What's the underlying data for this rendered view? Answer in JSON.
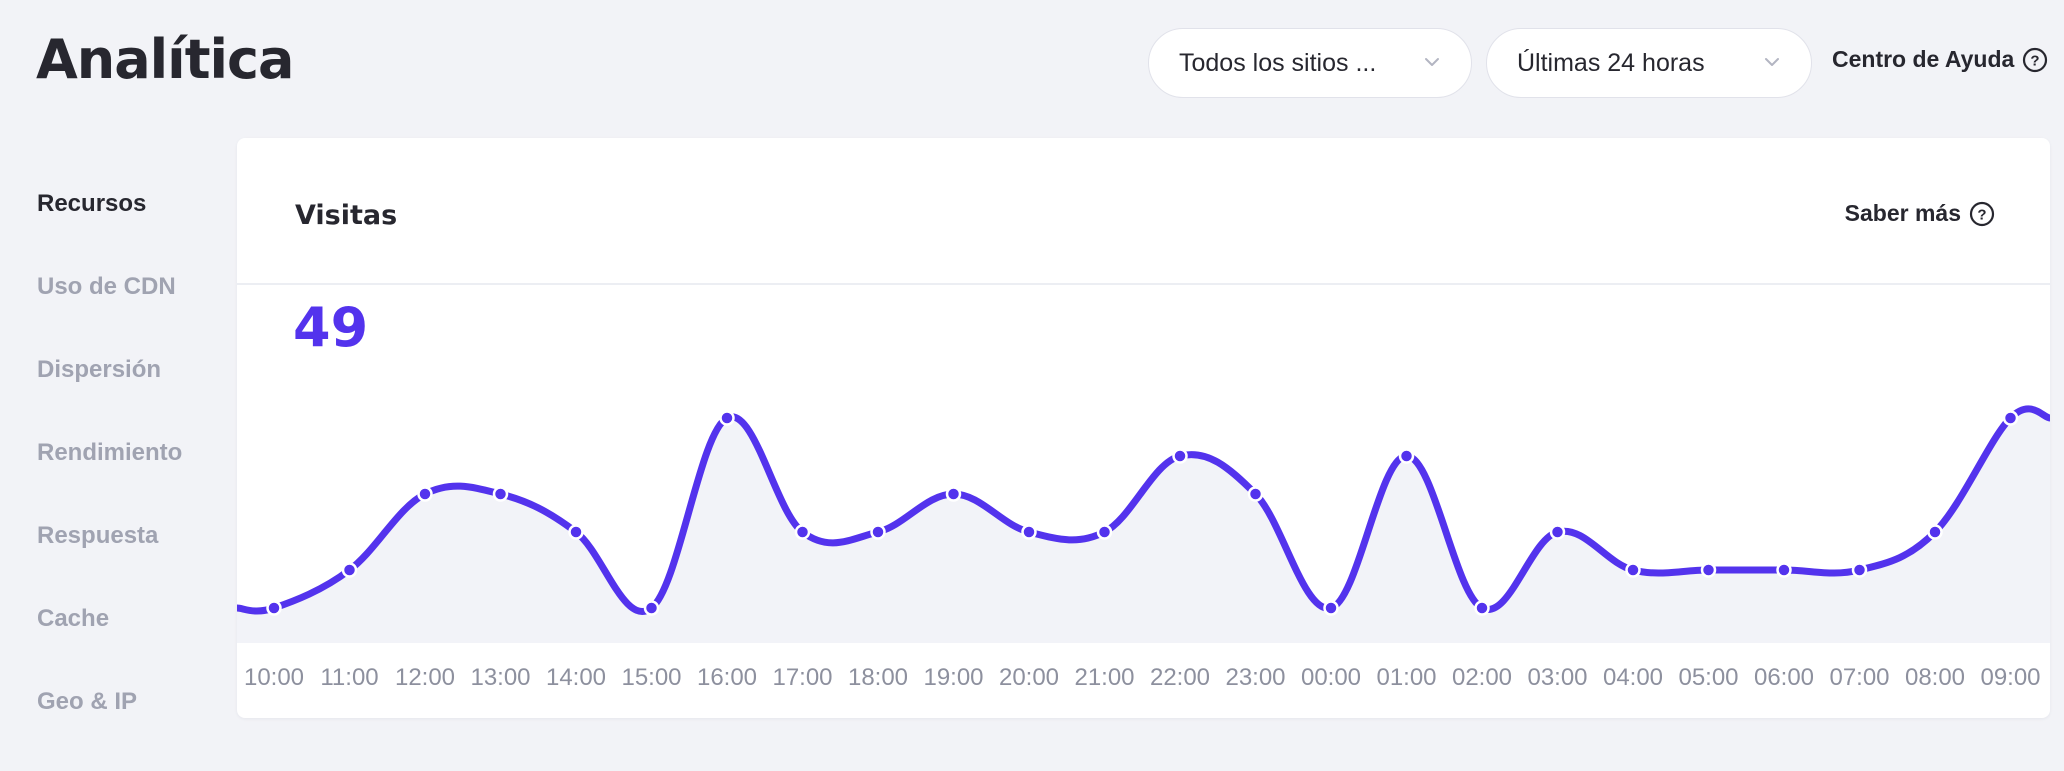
{
  "page": {
    "title": "Analítica",
    "help_label": "Centro de Ayuda",
    "help_icon": "question-circle-icon",
    "accent_color": "#5333ed"
  },
  "filters": {
    "sites_selected": "Todos los sitios ...",
    "range_selected": "Últimas 24 horas"
  },
  "sidebar": {
    "items": [
      {
        "label": "Recursos",
        "active": true
      },
      {
        "label": "Uso de CDN",
        "active": false
      },
      {
        "label": "Dispersión",
        "active": false
      },
      {
        "label": "Rendimiento",
        "active": false
      },
      {
        "label": "Respuesta",
        "active": false
      },
      {
        "label": "Cache",
        "active": false
      },
      {
        "label": "Geo & IP",
        "active": false
      }
    ]
  },
  "card": {
    "title": "Visitas",
    "learn_more": "Saber más",
    "total": "49"
  },
  "chart_data": {
    "type": "area",
    "title": "Visitas",
    "x": [
      "10:00",
      "11:00",
      "12:00",
      "13:00",
      "14:00",
      "15:00",
      "16:00",
      "17:00",
      "18:00",
      "19:00",
      "20:00",
      "21:00",
      "22:00",
      "23:00",
      "00:00",
      "01:00",
      "02:00",
      "03:00",
      "04:00",
      "05:00",
      "06:00",
      "07:00",
      "08:00",
      "09:00"
    ],
    "series": [
      {
        "values": [
          0,
          1,
          3,
          3,
          2,
          0,
          5,
          2,
          2,
          3,
          2,
          2,
          4,
          3,
          0,
          4,
          0,
          2,
          1,
          1,
          1,
          1,
          2,
          5
        ],
        "color": "#5333ed"
      }
    ],
    "ylim": [
      0,
      6
    ],
    "grid": false
  }
}
